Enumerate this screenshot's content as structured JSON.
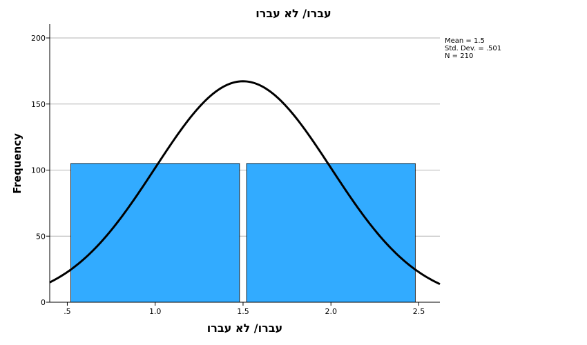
{
  "chart_data": {
    "type": "bar",
    "title": "עברו/ לא עברו",
    "xlabel": "עברו/ לא עברו",
    "ylabel": "Frequency",
    "categories": [
      "1",
      "2"
    ],
    "bins": [
      {
        "from": 0.52,
        "to": 1.48,
        "count": 105
      },
      {
        "from": 1.52,
        "to": 2.48,
        "count": 105
      }
    ],
    "values": [
      105,
      105
    ],
    "xlim": [
      0.4,
      2.62
    ],
    "ylim": [
      0,
      210
    ],
    "xticks": [
      0.5,
      1.0,
      1.5,
      2.0,
      2.5
    ],
    "xtick_labels": [
      ".5",
      "1.0",
      "1.5",
      "2.0",
      "2.5"
    ],
    "yticks": [
      0,
      50,
      100,
      150,
      200
    ],
    "ytick_labels": [
      "0",
      "50",
      "100",
      "150",
      "200"
    ],
    "grid": true,
    "bar_color": "#32abff",
    "normal_curve": {
      "mean": 1.5,
      "sd": 0.501,
      "n": 210,
      "bin_width": 1.0,
      "color": "#000000"
    },
    "stats": {
      "mean_label": "Mean = 1.5",
      "sd_label": "Std. Dev. = .501",
      "n_label": "N = 210"
    }
  }
}
